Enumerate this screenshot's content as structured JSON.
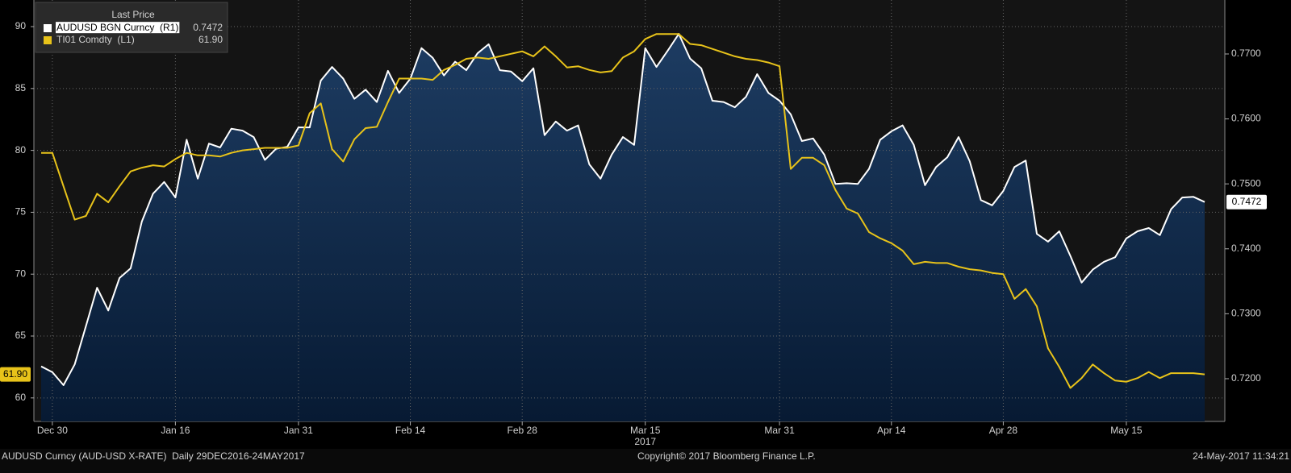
{
  "chart_data": {
    "type": "line",
    "legend_title": "Last Price",
    "x": [
      "2016-12-29",
      "2016-12-30",
      "2017-01-02",
      "2017-01-03",
      "2017-01-04",
      "2017-01-05",
      "2017-01-06",
      "2017-01-09",
      "2017-01-10",
      "2017-01-11",
      "2017-01-12",
      "2017-01-13",
      "2017-01-16",
      "2017-01-17",
      "2017-01-18",
      "2017-01-19",
      "2017-01-20",
      "2017-01-23",
      "2017-01-24",
      "2017-01-25",
      "2017-01-26",
      "2017-01-27",
      "2017-01-30",
      "2017-01-31",
      "2017-02-01",
      "2017-02-02",
      "2017-02-03",
      "2017-02-06",
      "2017-02-07",
      "2017-02-08",
      "2017-02-09",
      "2017-02-10",
      "2017-02-13",
      "2017-02-14",
      "2017-02-15",
      "2017-02-16",
      "2017-02-17",
      "2017-02-20",
      "2017-02-21",
      "2017-02-22",
      "2017-02-23",
      "2017-02-24",
      "2017-02-27",
      "2017-02-28",
      "2017-03-01",
      "2017-03-02",
      "2017-03-03",
      "2017-03-06",
      "2017-03-07",
      "2017-03-08",
      "2017-03-09",
      "2017-03-10",
      "2017-03-13",
      "2017-03-14",
      "2017-03-15",
      "2017-03-16",
      "2017-03-17",
      "2017-03-20",
      "2017-03-21",
      "2017-03-22",
      "2017-03-23",
      "2017-03-24",
      "2017-03-27",
      "2017-03-28",
      "2017-03-29",
      "2017-03-30",
      "2017-03-31",
      "2017-04-03",
      "2017-04-04",
      "2017-04-05",
      "2017-04-06",
      "2017-04-07",
      "2017-04-10",
      "2017-04-11",
      "2017-04-12",
      "2017-04-13",
      "2017-04-14",
      "2017-04-17",
      "2017-04-18",
      "2017-04-19",
      "2017-04-20",
      "2017-04-21",
      "2017-04-24",
      "2017-04-25",
      "2017-04-26",
      "2017-04-27",
      "2017-04-28",
      "2017-05-01",
      "2017-05-02",
      "2017-05-03",
      "2017-05-04",
      "2017-05-05",
      "2017-05-08",
      "2017-05-09",
      "2017-05-10",
      "2017-05-11",
      "2017-05-12",
      "2017-05-15",
      "2017-05-16",
      "2017-05-17",
      "2017-05-18",
      "2017-05-19",
      "2017-05-22",
      "2017-05-23",
      "2017-05-24"
    ],
    "series": [
      {
        "name": "AUDUSD BGN Curncy  (R1)",
        "last_label": "0.7472",
        "color": "#ffffff",
        "axis": "y2",
        "area": true,
        "values": [
          0.7219,
          0.721,
          0.719,
          0.7222,
          0.7281,
          0.734,
          0.7305,
          0.7355,
          0.737,
          0.7442,
          0.7485,
          0.7503,
          0.7479,
          0.7568,
          0.7508,
          0.7562,
          0.7556,
          0.7585,
          0.7582,
          0.7572,
          0.7537,
          0.7554,
          0.7557,
          0.7587,
          0.7587,
          0.7659,
          0.768,
          0.7662,
          0.7631,
          0.7645,
          0.7626,
          0.7674,
          0.764,
          0.7662,
          0.7709,
          0.7694,
          0.7667,
          0.7688,
          0.7675,
          0.7701,
          0.7715,
          0.7675,
          0.7673,
          0.7658,
          0.7678,
          0.7575,
          0.7596,
          0.7582,
          0.759,
          0.753,
          0.7508,
          0.7545,
          0.7572,
          0.756,
          0.7709,
          0.768,
          0.7705,
          0.7731,
          0.7693,
          0.7678,
          0.7628,
          0.7626,
          0.7618,
          0.7634,
          0.7669,
          0.764,
          0.7628,
          0.7607,
          0.7566,
          0.757,
          0.7545,
          0.75,
          0.7501,
          0.75,
          0.7523,
          0.7568,
          0.7581,
          0.759,
          0.756,
          0.7498,
          0.7526,
          0.7541,
          0.7572,
          0.7535,
          0.7475,
          0.7467,
          0.7489,
          0.7526,
          0.7536,
          0.7423,
          0.7411,
          0.7427,
          0.7389,
          0.7348,
          0.7368,
          0.738,
          0.7387,
          0.7416,
          0.7427,
          0.7432,
          0.7421,
          0.7461,
          0.7479,
          0.748,
          0.7472
        ]
      },
      {
        "name": "TI01 Comdty  (L1)",
        "last_label": "61.90",
        "color": "#e8c31a",
        "axis": "y",
        "area": false,
        "values": [
          79.8,
          79.8,
          77.1,
          74.4,
          74.7,
          76.5,
          75.8,
          77.1,
          78.3,
          78.6,
          78.8,
          78.7,
          79.3,
          79.8,
          79.6,
          79.6,
          79.5,
          79.8,
          80.0,
          80.1,
          80.2,
          80.2,
          80.2,
          80.4,
          83.0,
          83.8,
          80.1,
          79.1,
          80.9,
          81.8,
          81.9,
          83.9,
          85.8,
          85.8,
          85.8,
          85.7,
          86.5,
          86.9,
          87.4,
          87.5,
          87.4,
          87.6,
          87.8,
          88.0,
          87.6,
          88.4,
          87.6,
          86.7,
          86.8,
          86.5,
          86.3,
          86.4,
          87.5,
          88.0,
          89.0,
          89.4,
          89.4,
          89.4,
          88.6,
          88.5,
          88.2,
          87.9,
          87.6,
          87.4,
          87.3,
          87.1,
          86.8,
          78.5,
          79.4,
          79.4,
          78.8,
          76.8,
          75.3,
          74.9,
          73.4,
          72.9,
          72.5,
          71.9,
          70.8,
          71.0,
          70.9,
          70.9,
          70.6,
          70.4,
          70.3,
          70.1,
          70.0,
          68.0,
          68.8,
          67.4,
          64.0,
          62.5,
          60.8,
          61.6,
          62.7,
          62.0,
          61.4,
          61.3,
          61.6,
          62.1,
          61.6,
          62.0,
          62.0,
          62.0,
          61.9
        ]
      }
    ],
    "ylim": [
      58.1,
      92.15
    ],
    "yticks": [
      60,
      65,
      70,
      75,
      80,
      85,
      90
    ],
    "y2lim": [
      0.71342,
      0.77831
    ],
    "y2ticks": [
      {
        "value": 0.72,
        "label": "0.7200"
      },
      {
        "value": 0.73,
        "label": "0.7300"
      },
      {
        "value": 0.74,
        "label": "0.7400"
      },
      {
        "value": 0.75,
        "label": "0.7500"
      },
      {
        "value": 0.76,
        "label": "0.7600"
      },
      {
        "value": 0.77,
        "label": "0.7700"
      }
    ],
    "xticks": [
      {
        "value": "2016-12-30",
        "label": "Dec 30"
      },
      {
        "value": "2017-01-16",
        "label": "Jan 16"
      },
      {
        "value": "2017-01-31",
        "label": "Jan 31"
      },
      {
        "value": "2017-02-14",
        "label": "Feb 14"
      },
      {
        "value": "2017-02-28",
        "label": "Feb 28"
      },
      {
        "value": "2017-03-15",
        "label": "Mar 15"
      },
      {
        "value": "2017-03-31",
        "label": "Mar 31"
      },
      {
        "value": "2017-04-14",
        "label": "Apr 14"
      },
      {
        "value": "2017-04-28",
        "label": "Apr 28"
      },
      {
        "value": "2017-05-15",
        "label": "May 15"
      }
    ],
    "year_label": {
      "at": "2017-03-15",
      "label": "2017"
    },
    "grid": true,
    "footer_left": "AUDUSD Curncy (AUD-USD X-RATE)  Daily 29DEC2016-24MAY2017",
    "footer_center": "Copyright© 2017 Bloomberg Finance L.P.",
    "footer_right": "24-May-2017 11:34:21"
  }
}
